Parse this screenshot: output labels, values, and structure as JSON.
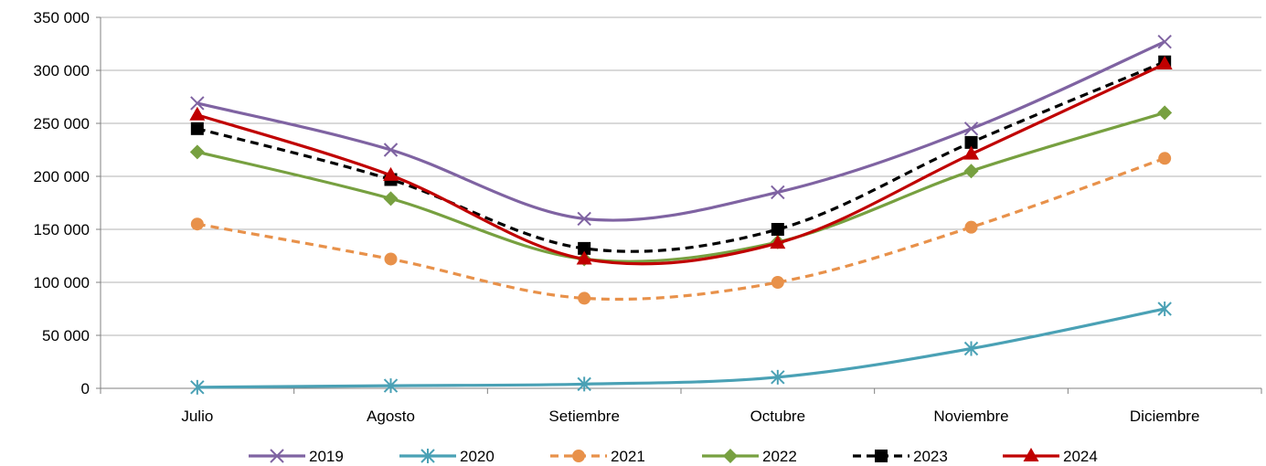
{
  "chart_data": {
    "type": "line",
    "title": "",
    "xlabel": "",
    "ylabel": "",
    "categories": [
      "Julio",
      "Agosto",
      "Setiembre",
      "Octubre",
      "Noviembre",
      "Diciembre"
    ],
    "ylim": [
      0,
      350000
    ],
    "yticks": [
      0,
      50000,
      100000,
      150000,
      200000,
      250000,
      300000,
      350000
    ],
    "ytick_labels": [
      "0",
      "50 000",
      "100 000",
      "150 000",
      "200 000",
      "250 000",
      "300 000",
      "350 000"
    ],
    "grid": "horizontal",
    "legend_position": "bottom",
    "smooth": true,
    "series": [
      {
        "name": "2019",
        "values": [
          269000,
          225000,
          160000,
          185000,
          245000,
          327000
        ],
        "color": "#7f63a2",
        "marker": "x",
        "dash": "solid"
      },
      {
        "name": "2020",
        "values": [
          1000,
          2500,
          4000,
          10500,
          37500,
          75000
        ],
        "color": "#4aa1b5",
        "marker": "asterisk",
        "dash": "solid"
      },
      {
        "name": "2021",
        "values": [
          155000,
          122000,
          85000,
          100000,
          152000,
          217000
        ],
        "color": "#e8914a",
        "marker": "circle",
        "dash": "dashed"
      },
      {
        "name": "2022",
        "values": [
          223000,
          179000,
          122000,
          138000,
          205000,
          260000
        ],
        "color": "#77a040",
        "marker": "diamond",
        "dash": "solid"
      },
      {
        "name": "2023",
        "values": [
          245000,
          197000,
          132000,
          150000,
          232000,
          308000
        ],
        "color": "#000000",
        "marker": "square",
        "dash": "dashed"
      },
      {
        "name": "2024",
        "values": [
          258000,
          201000,
          122000,
          137000,
          221000,
          306000
        ],
        "color": "#c00000",
        "marker": "triangle",
        "dash": "solid"
      }
    ]
  }
}
